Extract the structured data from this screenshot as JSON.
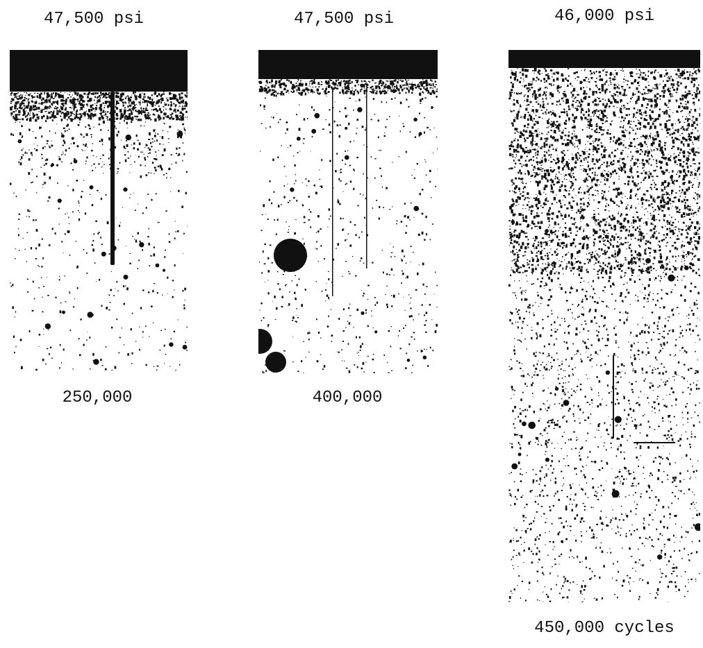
{
  "figure": {
    "specimens": [
      {
        "stress_label": "47,500 psi",
        "cycles_label": "250,000"
      },
      {
        "stress_label": "47,500 psi",
        "cycles_label": "400,000"
      },
      {
        "stress_label": "46,000 psi",
        "cycles_label": "450,000 cycles"
      }
    ]
  },
  "colors": {
    "ink": "#111111",
    "background": "#ffffff"
  }
}
